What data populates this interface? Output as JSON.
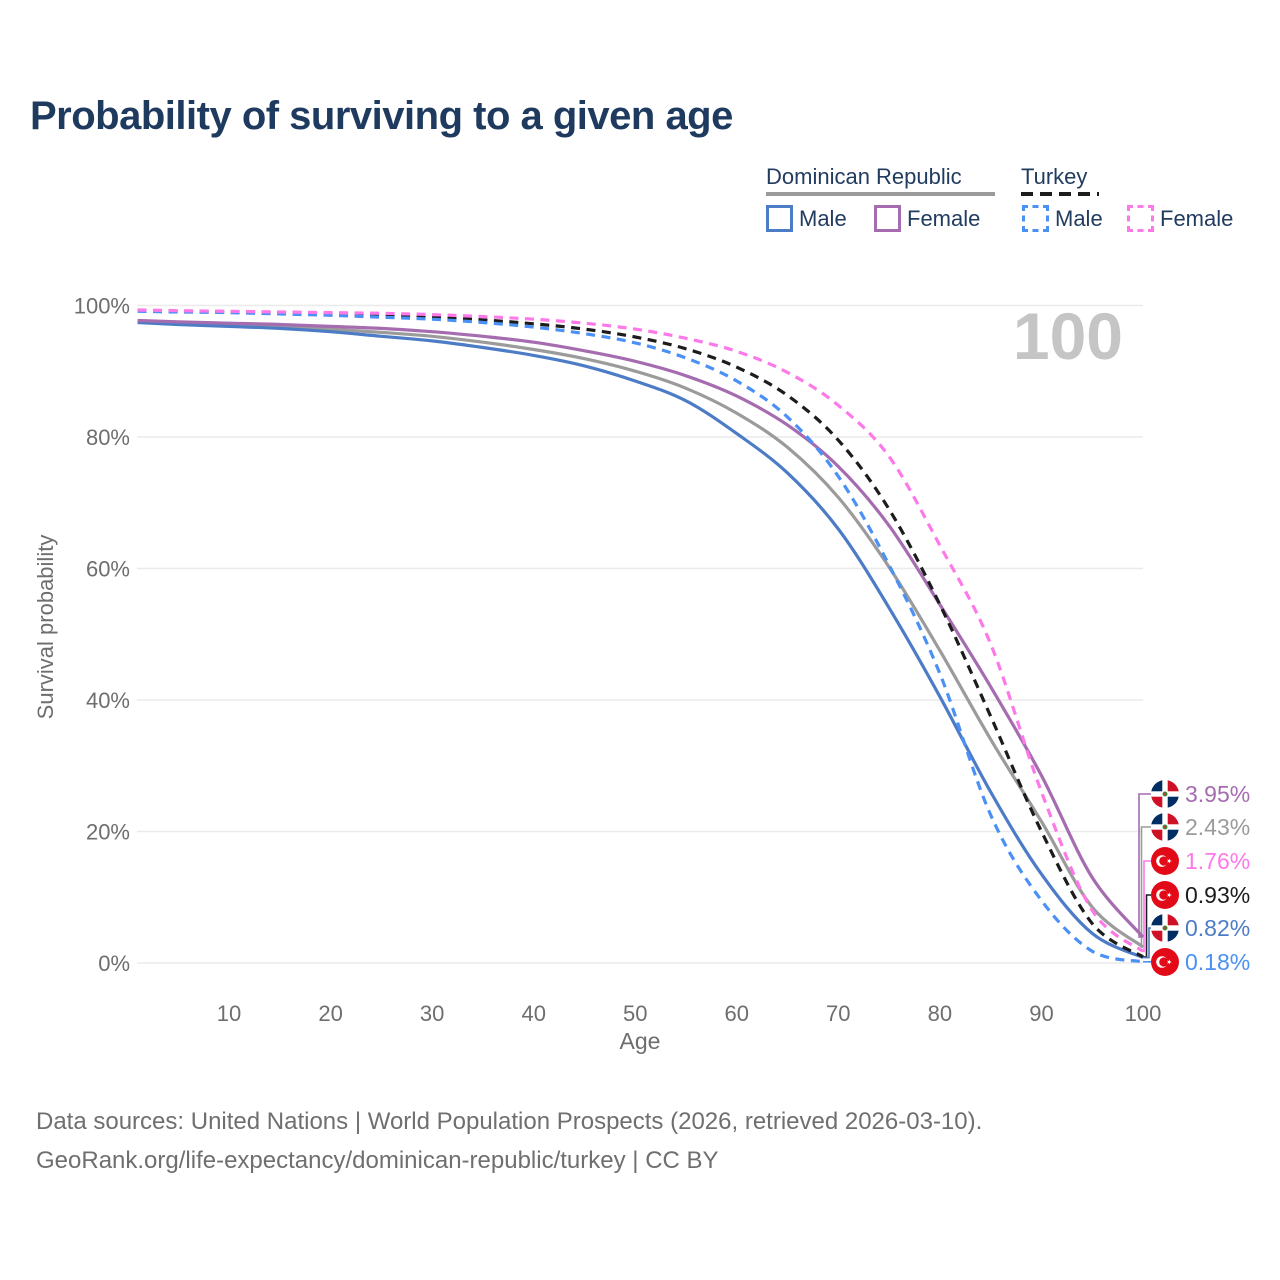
{
  "title": "Probability of surviving to a given age",
  "watermark": "100",
  "legend": {
    "groups": [
      {
        "label": "Dominican Republic",
        "line_style": "solid",
        "line_color": "#9b9b9b"
      },
      {
        "label": "Turkey",
        "line_style": "dashed",
        "line_color": "#1c1c1c"
      }
    ],
    "items": [
      {
        "label": "Male",
        "group": "Dominican Republic",
        "color": "#4d7cc7",
        "style": "solid"
      },
      {
        "label": "Female",
        "group": "Dominican Republic",
        "color": "#a56cb0",
        "style": "solid"
      },
      {
        "label": "Male",
        "group": "Turkey",
        "color": "#4b90f5",
        "style": "dashed"
      },
      {
        "label": "Female",
        "group": "Turkey",
        "color": "#fd79e9",
        "style": "dashed"
      }
    ]
  },
  "chart_data": {
    "type": "line",
    "title": "Probability of surviving to a given age",
    "xlabel": "Age",
    "ylabel": "Survival probability",
    "x_ticks": [
      10,
      20,
      30,
      40,
      50,
      60,
      70,
      80,
      90,
      100
    ],
    "y_ticks": [
      100,
      80,
      60,
      40,
      20,
      0
    ],
    "y_tick_suffix": "%",
    "xlim": [
      1,
      100
    ],
    "ylim": [
      0,
      100
    ],
    "grid": true,
    "legend_position": "top-right",
    "ages": [
      1,
      5,
      10,
      15,
      20,
      25,
      30,
      35,
      40,
      45,
      50,
      55,
      60,
      65,
      70,
      75,
      80,
      85,
      90,
      95,
      100
    ],
    "series": [
      {
        "id": "dr_both",
        "name": "Dominican Republic",
        "sex": "Both sexes",
        "flag": "dominican-republic",
        "color": "#9b9b9b",
        "dashed": false,
        "end_label": "2.43%",
        "values": [
          97.6,
          97.3,
          97.1,
          96.8,
          96.4,
          95.9,
          95.3,
          94.4,
          93.3,
          91.9,
          90.0,
          87.4,
          83.6,
          78.4,
          70.8,
          60.2,
          47.5,
          34.0,
          21.5,
          8.5,
          2.43
        ]
      },
      {
        "id": "dr_male",
        "name": "Dominican Republic Male",
        "sex": "Male",
        "flag": "dominican-republic",
        "color": "#4d7cc7",
        "dashed": false,
        "end_label": "0.82%",
        "values": [
          97.4,
          97.1,
          96.8,
          96.5,
          96.0,
          95.3,
          94.6,
          93.6,
          92.4,
          90.8,
          88.5,
          85.5,
          80.5,
          74.5,
          66.0,
          54.0,
          40.5,
          26.0,
          13.5,
          4.5,
          0.82
        ]
      },
      {
        "id": "dr_female",
        "name": "Dominican Republic Female",
        "sex": "Female",
        "flag": "dominican-republic",
        "color": "#a56cb0",
        "dashed": false,
        "end_label": "3.95%",
        "values": [
          97.7,
          97.5,
          97.3,
          97.1,
          96.8,
          96.5,
          96.0,
          95.3,
          94.4,
          93.1,
          91.5,
          89.3,
          86.2,
          81.8,
          75.5,
          66.5,
          54.5,
          42.0,
          28.5,
          13.0,
          3.95
        ]
      },
      {
        "id": "tr_both",
        "name": "Turkey",
        "sex": "Both sexes",
        "flag": "turkey",
        "color": "#1c1c1c",
        "dashed": true,
        "end_label": "0.93%",
        "values": [
          99.2,
          99.1,
          99.0,
          98.9,
          98.7,
          98.5,
          98.2,
          97.8,
          97.2,
          96.4,
          95.2,
          93.4,
          90.6,
          86.3,
          79.5,
          69.0,
          54.5,
          37.5,
          20.0,
          6.0,
          0.93
        ]
      },
      {
        "id": "tr_male",
        "name": "Turkey Male",
        "sex": "Male",
        "flag": "turkey",
        "color": "#4b90f5",
        "dashed": true,
        "end_label": "0.18%",
        "values": [
          99.1,
          99.0,
          98.9,
          98.7,
          98.5,
          98.2,
          97.9,
          97.4,
          96.7,
          95.7,
          94.3,
          92.0,
          88.5,
          83.0,
          74.0,
          60.5,
          44.0,
          22.5,
          9.5,
          1.8,
          0.18
        ]
      },
      {
        "id": "tr_female",
        "name": "Turkey Female",
        "sex": "Female",
        "flag": "turkey",
        "color": "#fd79e9",
        "dashed": true,
        "end_label": "1.76%",
        "values": [
          99.3,
          99.2,
          99.1,
          99.0,
          98.9,
          98.8,
          98.6,
          98.3,
          97.9,
          97.3,
          96.4,
          95.0,
          93.0,
          89.8,
          84.8,
          77.0,
          63.5,
          48.5,
          26.0,
          8.0,
          1.76
        ]
      }
    ],
    "end_label_order": [
      "dr_female",
      "dr_both",
      "tr_female",
      "tr_both",
      "dr_male",
      "tr_male"
    ]
  },
  "footer": {
    "line1": "Data sources: United Nations | World Population Prospects (2026, retrieved 2026-03-10).",
    "line2": "GeoRank.org/life-expectancy/dominican-republic/turkey | CC BY"
  },
  "colors": {
    "title_text": "#1e3a5f",
    "axis_text": "#6e6e6e",
    "gridline": "#ebebeb",
    "watermark": "#c5c5c5"
  }
}
